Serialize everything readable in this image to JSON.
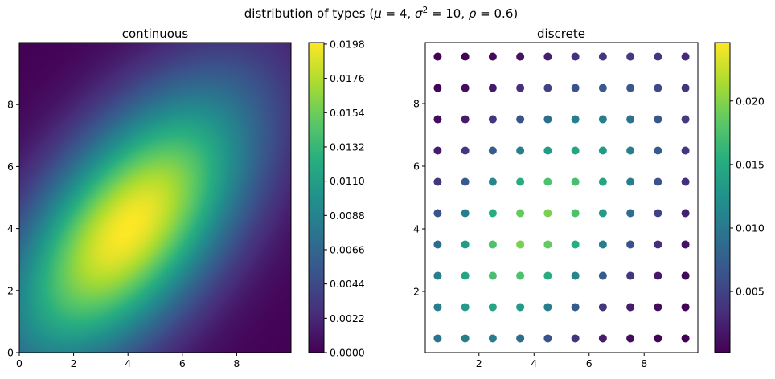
{
  "figure": {
    "suptitle_prefix": "distribution of types (",
    "mu_symbol": "μ",
    "mu_value": " = 4, ",
    "sigma_symbol": "σ",
    "sigma_sup": "2",
    "sigma_value": " = 10, ",
    "rho_symbol": "ρ",
    "rho_value": " = 0.6)"
  },
  "chart_data": [
    {
      "type": "heatmap",
      "title": "continuous",
      "xlabel": "",
      "ylabel": "",
      "xlim": [
        0,
        10
      ],
      "ylim": [
        0,
        10
      ],
      "xticks": [
        "0",
        "2",
        "4",
        "6",
        "8"
      ],
      "yticks": [
        "0",
        "2",
        "4",
        "6",
        "8"
      ],
      "colormap": "viridis",
      "distribution": {
        "mu": 4,
        "sigma2": 10,
        "rho": 0.6
      },
      "colorbar": {
        "range": [
          0,
          0.0199
        ],
        "ticks": [
          "0.0000",
          "0.0022",
          "0.0044",
          "0.0066",
          "0.0088",
          "0.0110",
          "0.0132",
          "0.0154",
          "0.0176",
          "0.0198"
        ]
      }
    },
    {
      "type": "scatter",
      "title": "discrete",
      "xlabel": "",
      "ylabel": "",
      "xlim": [
        0.05,
        9.95
      ],
      "ylim": [
        0.05,
        9.95
      ],
      "xticks": [
        "2",
        "4",
        "6",
        "8"
      ],
      "yticks": [
        "2",
        "4",
        "6",
        "8"
      ],
      "grid_x": [
        0.5,
        1.5,
        2.5,
        3.5,
        4.5,
        5.5,
        6.5,
        7.5,
        8.5,
        9.5
      ],
      "grid_y": [
        0.5,
        1.5,
        2.5,
        3.5,
        4.5,
        5.5,
        6.5,
        7.5,
        8.5,
        9.5
      ],
      "colormap": "viridis",
      "distribution": {
        "mu": 4,
        "sigma2": 10,
        "rho": 0.6
      },
      "colorbar": {
        "range": [
          0.0002,
          0.0246
        ],
        "ticks": [
          "0.005",
          "0.010",
          "0.015",
          "0.020"
        ],
        "tick_values": [
          0.005,
          0.01,
          0.015,
          0.02
        ]
      }
    }
  ]
}
